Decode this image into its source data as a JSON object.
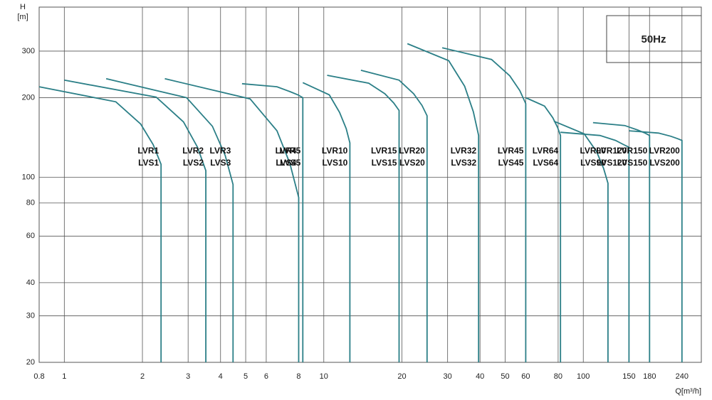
{
  "chart_data": {
    "type": "line",
    "title": "50Hz",
    "y_label": [
      "H",
      "[m]"
    ],
    "x_label": "Q[m³/h]",
    "log_x": true,
    "log_y": true,
    "grid": true,
    "color": "#2b7f87",
    "xlim": [
      0.8,
      285
    ],
    "xticks": [
      0.8,
      1,
      2,
      3,
      4,
      5,
      6,
      8,
      10,
      20,
      30,
      40,
      50,
      60,
      80,
      100,
      150,
      180,
      240
    ],
    "ylim": [
      20,
      440
    ],
    "yticks": [
      20,
      30,
      40,
      60,
      80,
      100,
      200,
      300
    ],
    "series": [
      {
        "labels": [
          "LVR1",
          "LVS1"
        ],
        "x": [
          0.8,
          1.58,
          1.97,
          2.2,
          2.36,
          2.36
        ],
        "values": [
          220,
          193,
          159,
          133,
          112,
          20
        ]
      },
      {
        "labels": [
          "LVR2",
          "LVS2"
        ],
        "x": [
          1,
          2.26,
          2.88,
          3.26,
          3.51,
          3.51
        ],
        "values": [
          233,
          201,
          162,
          130,
          106,
          20
        ]
      },
      {
        "labels": [
          "LVR3",
          "LVS3"
        ],
        "x": [
          1.45,
          2.96,
          3.72,
          4.17,
          4.47,
          4.47
        ],
        "values": [
          236,
          200,
          156,
          121,
          94,
          20
        ]
      },
      {
        "labels": [
          "LVR4",
          "LVS4"
        ],
        "x": [
          2.44,
          5.2,
          6.6,
          7.4,
          8.0,
          8.0
        ],
        "values": [
          236,
          198,
          150,
          113,
          84,
          20
        ]
      },
      {
        "labels": [
          "LVR5",
          "LVS5"
        ],
        "x": [
          4.84,
          6.6,
          7.4,
          7.95,
          8.3,
          8.3
        ],
        "values": [
          226,
          220,
          211,
          205,
          200,
          20
        ]
      },
      {
        "labels": [
          "LVR10",
          "LVS10"
        ],
        "x": [
          8.3,
          10.5,
          11.5,
          12.2,
          12.6,
          12.6
        ],
        "values": [
          228,
          205,
          176,
          153,
          135,
          20
        ]
      },
      {
        "labels": [
          "LVR15",
          "LVS15"
        ],
        "x": [
          10.3,
          14.9,
          17.2,
          18.6,
          19.5,
          19.5
        ],
        "values": [
          243,
          227,
          207,
          191,
          179,
          20
        ]
      },
      {
        "labels": [
          "LVR20",
          "LVS20"
        ],
        "x": [
          13.9,
          19.5,
          22.2,
          23.9,
          25,
          25
        ],
        "values": [
          254,
          233,
          207,
          187,
          171,
          20
        ]
      },
      {
        "labels": [
          "LVR32",
          "LVS32"
        ],
        "x": [
          21,
          30.3,
          34.9,
          37.7,
          39.5,
          39.5
        ],
        "values": [
          320,
          276,
          221,
          177,
          144,
          20
        ]
      },
      {
        "labels": [
          "LVR45",
          "LVS45"
        ],
        "x": [
          28.6,
          44.3,
          52.1,
          56.9,
          60,
          60
        ],
        "values": [
          309,
          279,
          242,
          213,
          190,
          20
        ]
      },
      {
        "labels": [
          "LVR64",
          "LVS64"
        ],
        "x": [
          60,
          70.9,
          76.3,
          79.5,
          81.7,
          81.7
        ],
        "values": [
          200,
          186,
          168,
          155,
          144,
          20
        ]
      },
      {
        "labels": [
          "LVR90",
          "LVS90"
        ],
        "x": [
          77,
          100.8,
          112.6,
          119.8,
          124.5,
          124.5
        ],
        "values": [
          163,
          146,
          125,
          108,
          95,
          20
        ]
      },
      {
        "labels": [
          "LVR120",
          "LVS120"
        ],
        "x": [
          81.7,
          115.9,
          133,
          143,
          150,
          150
        ],
        "values": [
          148,
          144,
          138,
          133,
          130,
          20
        ]
      },
      {
        "labels": [
          "LVR150",
          "LVS150"
        ],
        "x": [
          109,
          144.5,
          162,
          173,
          180,
          180
        ],
        "values": [
          161,
          157,
          151,
          147,
          144,
          20
        ]
      },
      {
        "labels": [
          "LVR200",
          "LVS200"
        ],
        "x": [
          150,
          195,
          217.5,
          231,
          240,
          240
        ],
        "values": [
          150,
          147,
          143,
          140,
          138,
          20
        ]
      }
    ]
  }
}
